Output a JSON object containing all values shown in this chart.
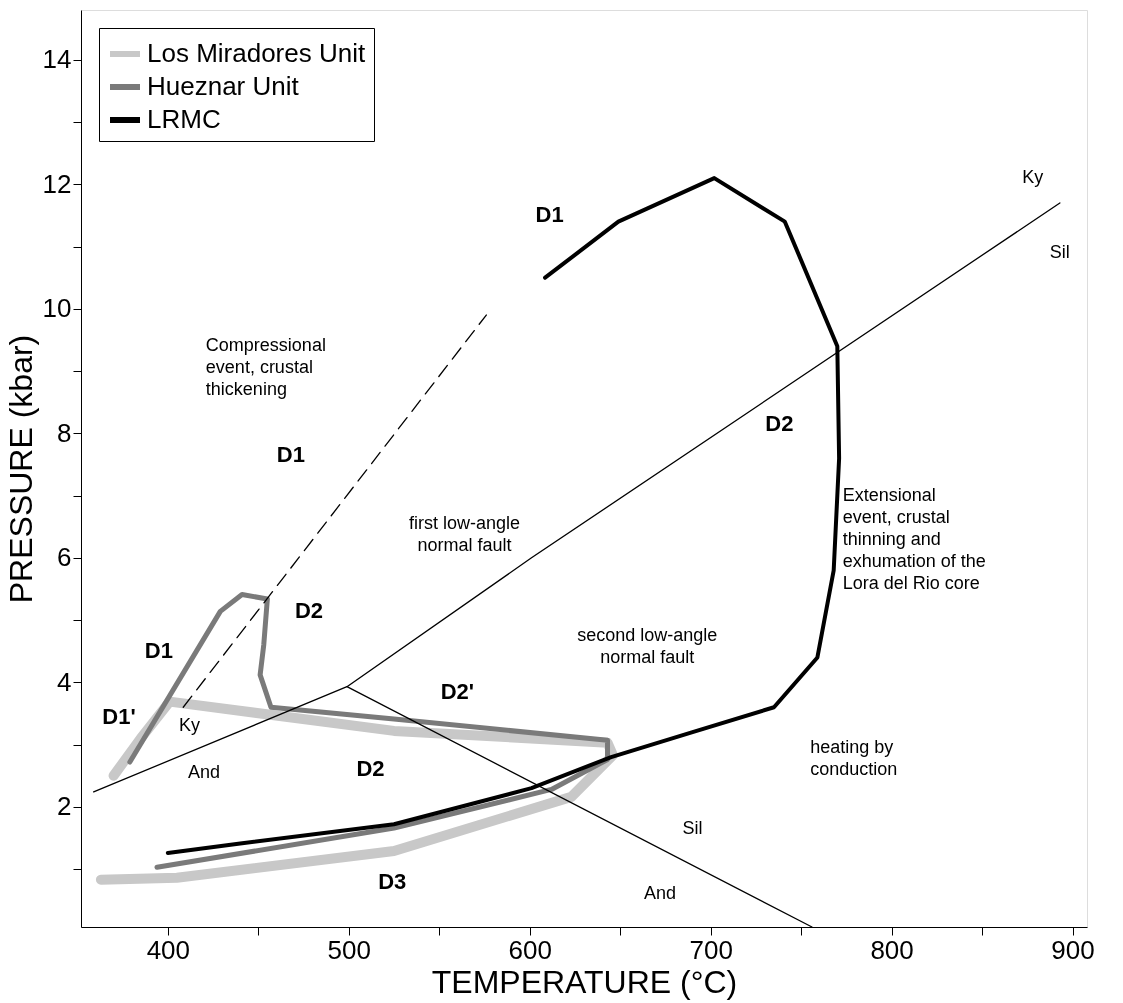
{
  "chart_data": {
    "type": "line",
    "xlabel": "TEMPERATURE (°C)",
    "ylabel": "PRESSURE (kbar)",
    "xlim": [
      352,
      908
    ],
    "ylim": [
      0.07,
      14.8
    ],
    "xticks": [
      400,
      {
        "value": 450,
        "label": null
      },
      500,
      {
        "value": 550,
        "label": null
      },
      600,
      {
        "value": 650,
        "label": null
      },
      700,
      {
        "value": 750,
        "label": null
      },
      800,
      {
        "value": 850,
        "label": null
      },
      900
    ],
    "yticks": [
      {
        "value": 1,
        "label": null
      },
      2,
      {
        "value": 3,
        "label": null
      },
      4,
      {
        "value": 5,
        "label": null
      },
      6,
      {
        "value": 7,
        "label": null
      },
      8,
      {
        "value": 9,
        "label": null
      },
      10,
      {
        "value": 11,
        "label": null
      },
      12,
      {
        "value": 13,
        "label": null
      },
      14
    ],
    "grid": false,
    "legend": "top left",
    "series": [
      {
        "name": "Los Miradores Unit",
        "color": "#c8c8c8",
        "line_style": "solid",
        "x": [
          370,
          385,
          401,
          525,
          643,
          646,
          623,
          525,
          405,
          363
        ],
        "values": [
          2.5,
          3.1,
          3.69,
          3.22,
          3.03,
          2.83,
          2.16,
          1.29,
          0.86,
          0.83
        ]
      },
      {
        "name": "Hueznar Unit",
        "color": "#7a7a7a",
        "line_style": "solid",
        "x": [
          379,
          429,
          441,
          455,
          453,
          451,
          457,
          525,
          643,
          643,
          612,
          525,
          394
        ],
        "values": [
          2.72,
          5.14,
          5.41,
          5.34,
          4.6,
          4.12,
          3.6,
          3.41,
          3.07,
          2.76,
          2.28,
          1.66,
          1.03
        ]
      },
      {
        "name": "LRMC",
        "color": "#000000",
        "line_style": "solid",
        "x": [
          608.5,
          649,
          702,
          741,
          770,
          771,
          768,
          759,
          735,
          690,
          645,
          601,
          525,
          440,
          400
        ],
        "values": [
          10.5,
          11.4,
          12.1,
          11.4,
          9.4,
          7.6,
          5.8,
          4.4,
          3.6,
          3.2,
          2.8,
          2.3,
          1.72,
          1.41,
          1.26
        ]
      },
      {
        "color": "#000000",
        "line_style": "dashed",
        "x": [
          408.5,
          576
        ],
        "values": [
          3.6,
          9.9
        ]
      },
      {
        "color": "#000000",
        "line_style": "solid",
        "x": [
          359,
          499,
          601,
          893
        ],
        "values": [
          2.24,
          3.93,
          6.0,
          11.7
        ]
      },
      {
        "color": "#000000",
        "line_style": "solid",
        "x": [
          499,
          756
        ],
        "values": [
          3.93,
          0.07
        ]
      }
    ],
    "annotations": [
      "D1",
      "D2",
      "D1",
      "Compressional\nevent, crustal\nthickening",
      "first low-angle\nnormal fault",
      "second low-angle\nnormal fault",
      "Extensional\nevent, crustal\nthinning and\nexhumation of the\nLora del Rio core",
      "heating by\nconduction",
      "D2'",
      "D2",
      "D3",
      "D2",
      "D1",
      "D1'",
      "Ky",
      "And",
      "Ky",
      "Sil",
      "Sil",
      "And"
    ]
  }
}
